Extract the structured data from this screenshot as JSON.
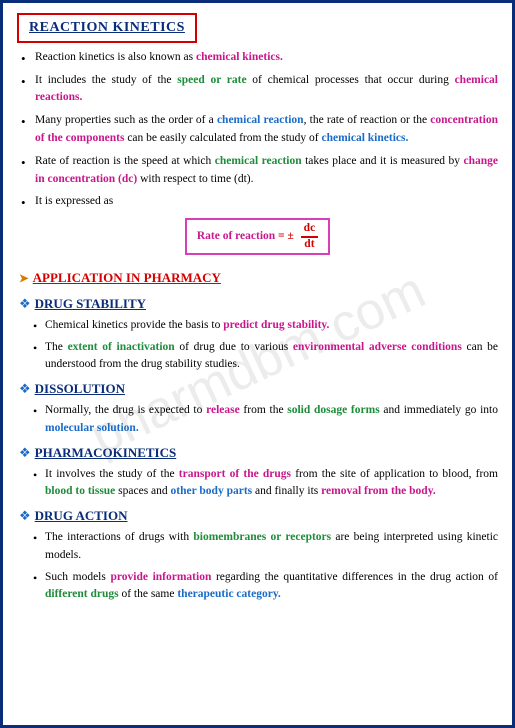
{
  "watermark": "pharmdbm.com",
  "title": "REACTION KINETICS",
  "bullets": {
    "b1a": "Reaction kinetics is also known as ",
    "b1b": "chemical kinetics.",
    "b2a": "It includes the study of the ",
    "b2b": "speed or rate",
    "b2c": " of chemical processes that occur during ",
    "b2d": "chemical reactions.",
    "b3a": "Many properties such as the order of a ",
    "b3b": "chemical reaction",
    "b3c": ", the rate of reaction or the ",
    "b3d": "concentration of the components",
    "b3e": " can be easily calculated from the study of ",
    "b3f": "chemical kinetics.",
    "b4a": "Rate of reaction is the speed at which ",
    "b4b": "chemical reaction",
    "b4c": " takes place and it is measured by ",
    "b4d": "change in concentration (dc)",
    "b4e": " with respect to time (dt).",
    "b5": "It is expressed as"
  },
  "formula": {
    "lhs": "Rate of reaction",
    "eq": " = ± ",
    "num": "dc",
    "den": "dt"
  },
  "app_heading": "APPLICATION IN PHARMACY",
  "sections": {
    "stab": {
      "title": "DRUG STABILITY",
      "i1a": "Chemical kinetics provide the basis to ",
      "i1b": "predict drug stability.",
      "i2a": "The ",
      "i2b": "extent of inactivation",
      "i2c": " of drug due to various ",
      "i2d": "environmental adverse conditions",
      "i2e": " can be understood from the drug stability studies."
    },
    "diss": {
      "title": "DISSOLUTION",
      "i1a": "Normally, the drug is expected to ",
      "i1b": "release",
      "i1c": " from the ",
      "i1d": "solid dosage forms",
      "i1e": " and immediately go into ",
      "i1f": "molecular solution."
    },
    "pk": {
      "title": "PHARMACOKINETICS",
      "i1a": "It involves the study of the ",
      "i1b": "transport of the drugs",
      "i1c": " from the site of application to blood, from ",
      "i1d": "blood to tissue",
      "i1e": " spaces and ",
      "i1f": "other body parts",
      "i1g": " and finally its ",
      "i1h": "removal from the body."
    },
    "da": {
      "title": "DRUG ACTION",
      "i1a": "The interactions of drugs with ",
      "i1b": "biomembranes or receptors",
      "i1c": " are being interpreted using kinetic models.",
      "i2a": "Such models ",
      "i2b": "provide information",
      "i2c": " regarding the quantitative differences in the drug action of ",
      "i2d": "different drugs",
      "i2e": " of the same ",
      "i2f": "therapeutic category."
    }
  }
}
